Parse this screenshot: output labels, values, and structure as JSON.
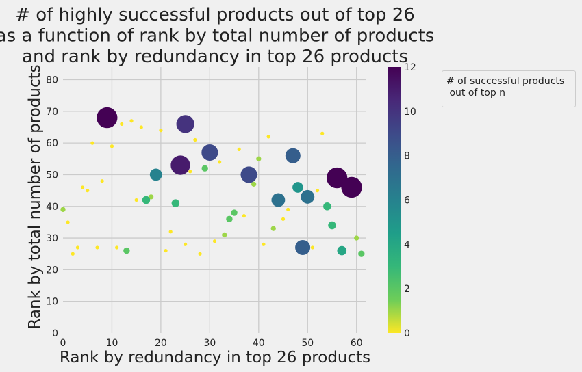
{
  "chart_data": {
    "type": "scatter",
    "title": "# of highly successful products out of top 26\nas a function of rank by total number of products\nand rank by redundancy in top 26 products",
    "xlabel": "Rank by redundancy in top 26 products",
    "ylabel": "Rank by total number of products",
    "xlim": [
      0,
      62
    ],
    "ylim": [
      0,
      84
    ],
    "xticks": [
      0,
      10,
      20,
      30,
      40,
      50,
      60
    ],
    "yticks": [
      0,
      10,
      20,
      30,
      40,
      50,
      60,
      70,
      80
    ],
    "grid": true,
    "colorbar": {
      "range": [
        0,
        12
      ],
      "ticks": [
        0,
        2,
        4,
        6,
        8,
        10,
        12
      ],
      "colormap": "viridis_r"
    },
    "legend": {
      "title": "# of successful products\n out of top n",
      "placement": "outside-right-top"
    },
    "points": [
      {
        "x": 9,
        "y": 68,
        "c": 12
      },
      {
        "x": 25,
        "y": 66,
        "c": 10
      },
      {
        "x": 30,
        "y": 57,
        "c": 9
      },
      {
        "x": 24,
        "y": 53,
        "c": 11
      },
      {
        "x": 38,
        "y": 50,
        "c": 9
      },
      {
        "x": 47,
        "y": 56,
        "c": 8
      },
      {
        "x": 19,
        "y": 50,
        "c": 6
      },
      {
        "x": 44,
        "y": 42,
        "c": 7
      },
      {
        "x": 50,
        "y": 43,
        "c": 7
      },
      {
        "x": 48,
        "y": 46,
        "c": 5
      },
      {
        "x": 49,
        "y": 27,
        "c": 8
      },
      {
        "x": 56,
        "y": 49,
        "c": 12
      },
      {
        "x": 59,
        "y": 46,
        "c": 12
      },
      {
        "x": 54,
        "y": 40,
        "c": 3
      },
      {
        "x": 55,
        "y": 34,
        "c": 3
      },
      {
        "x": 57,
        "y": 26,
        "c": 4
      },
      {
        "x": 61,
        "y": 25,
        "c": 2
      },
      {
        "x": 60,
        "y": 30,
        "c": 1
      },
      {
        "x": 35,
        "y": 38,
        "c": 2
      },
      {
        "x": 34,
        "y": 36,
        "c": 2
      },
      {
        "x": 29,
        "y": 52,
        "c": 2
      },
      {
        "x": 23,
        "y": 41,
        "c": 3
      },
      {
        "x": 17,
        "y": 42,
        "c": 3
      },
      {
        "x": 13,
        "y": 26,
        "c": 2
      },
      {
        "x": 39,
        "y": 47,
        "c": 1
      },
      {
        "x": 40,
        "y": 55,
        "c": 1
      },
      {
        "x": 43,
        "y": 33,
        "c": 1
      },
      {
        "x": 33,
        "y": 31,
        "c": 1
      },
      {
        "x": 18,
        "y": 43,
        "c": 1
      },
      {
        "x": 0,
        "y": 39,
        "c": 1
      },
      {
        "x": 1,
        "y": 35,
        "c": 0
      },
      {
        "x": 2,
        "y": 25,
        "c": 0
      },
      {
        "x": 3,
        "y": 27,
        "c": 0
      },
      {
        "x": 4,
        "y": 46,
        "c": 0
      },
      {
        "x": 5,
        "y": 45,
        "c": 0
      },
      {
        "x": 6,
        "y": 60,
        "c": 0
      },
      {
        "x": 7,
        "y": 27,
        "c": 0
      },
      {
        "x": 8,
        "y": 48,
        "c": 0
      },
      {
        "x": 10,
        "y": 59,
        "c": 0
      },
      {
        "x": 11,
        "y": 27,
        "c": 0
      },
      {
        "x": 12,
        "y": 66,
        "c": 0
      },
      {
        "x": 14,
        "y": 67,
        "c": 0
      },
      {
        "x": 15,
        "y": 42,
        "c": 0
      },
      {
        "x": 16,
        "y": 65,
        "c": 0
      },
      {
        "x": 20,
        "y": 64,
        "c": 0
      },
      {
        "x": 21,
        "y": 26,
        "c": 0
      },
      {
        "x": 22,
        "y": 32,
        "c": 0
      },
      {
        "x": 25,
        "y": 28,
        "c": 0
      },
      {
        "x": 26,
        "y": 51,
        "c": 0
      },
      {
        "x": 27,
        "y": 61,
        "c": 0
      },
      {
        "x": 28,
        "y": 25,
        "c": 0
      },
      {
        "x": 31,
        "y": 29,
        "c": 0
      },
      {
        "x": 32,
        "y": 54,
        "c": 0
      },
      {
        "x": 36,
        "y": 58,
        "c": 0
      },
      {
        "x": 37,
        "y": 37,
        "c": 0
      },
      {
        "x": 41,
        "y": 28,
        "c": 0
      },
      {
        "x": 42,
        "y": 62,
        "c": 0
      },
      {
        "x": 45,
        "y": 36,
        "c": 0
      },
      {
        "x": 46,
        "y": 39,
        "c": 0
      },
      {
        "x": 51,
        "y": 27,
        "c": 0
      },
      {
        "x": 52,
        "y": 45,
        "c": 0
      },
      {
        "x": 53,
        "y": 63,
        "c": 0
      }
    ]
  }
}
